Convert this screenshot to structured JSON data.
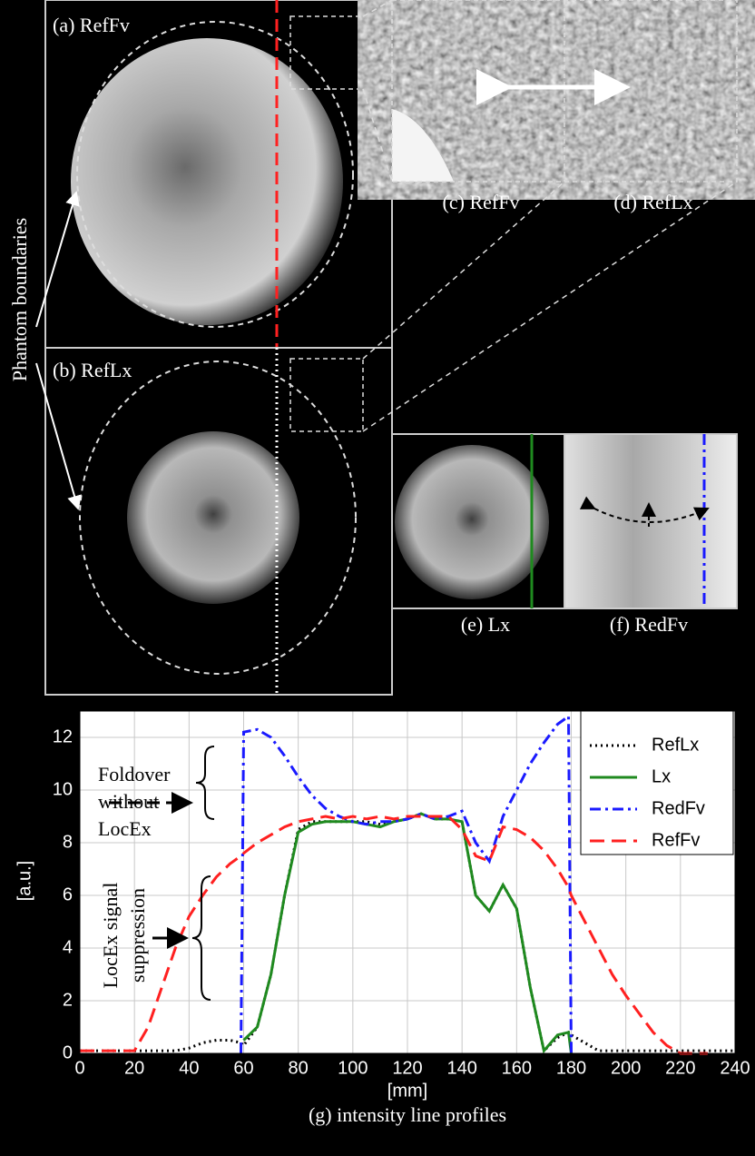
{
  "panels": {
    "a": "(a) RefFv",
    "b": "(b) RefLx",
    "c": "(c) RefFv",
    "d": "(d) RefLx",
    "e": "(e) Lx",
    "f": "(f) RedFv",
    "side_label": "Phantom boundaries"
  },
  "chart_data": {
    "type": "line",
    "title": "(g) intensity line profiles",
    "xlabel": "[mm]",
    "ylabel": "[a.u.]",
    "foldover_note": [
      "Foldover",
      "without",
      "LocEx"
    ],
    "suppression_note": [
      "LocEx signal",
      "suppression"
    ],
    "x": [
      0,
      5,
      10,
      15,
      20,
      25,
      30,
      35,
      40,
      45,
      50,
      55,
      59,
      60,
      65,
      70,
      75,
      80,
      85,
      90,
      95,
      100,
      105,
      110,
      115,
      120,
      125,
      130,
      135,
      140,
      145,
      150,
      155,
      160,
      165,
      170,
      175,
      179,
      180,
      185,
      190,
      195,
      200,
      205,
      210,
      215,
      220,
      225,
      230,
      235,
      240
    ],
    "xlim": [
      0,
      240
    ],
    "xticks": [
      0,
      20,
      40,
      60,
      80,
      100,
      120,
      140,
      160,
      180,
      200,
      220,
      240
    ],
    "ylim": [
      0,
      13
    ],
    "yticks": [
      0,
      2,
      4,
      6,
      8,
      10,
      12
    ],
    "grid": true,
    "legend": "upper right",
    "series": [
      {
        "name": "RefLx",
        "color": "#000000",
        "style": "dotted",
        "values": [
          0.1,
          0.1,
          0.1,
          0.1,
          0.1,
          0.1,
          0.1,
          0.1,
          0.2,
          0.4,
          0.5,
          0.5,
          0.4,
          0.3,
          1,
          3,
          6,
          8.5,
          8.8,
          8.8,
          8.8,
          8.8,
          8.8,
          8.7,
          8.8,
          8.9,
          9.1,
          8.9,
          8.9,
          8.8,
          6.0,
          5.4,
          6.4,
          5.5,
          2.5,
          0.1,
          0.6,
          0.8,
          0.7,
          0.4,
          0.1,
          0.1,
          0.1,
          0.1,
          0.1,
          0.1,
          0.1,
          0.1,
          0.1,
          0.1,
          0.1
        ]
      },
      {
        "name": "Lx",
        "color": "#1f8a1f",
        "style": "solid",
        "values": [
          null,
          null,
          null,
          null,
          null,
          null,
          null,
          null,
          null,
          null,
          null,
          null,
          null,
          0.5,
          1,
          3,
          6,
          8.4,
          8.7,
          8.8,
          8.8,
          8.8,
          8.7,
          8.6,
          8.8,
          8.9,
          9.1,
          8.9,
          8.9,
          8.8,
          6.0,
          5.4,
          6.4,
          5.5,
          2.5,
          0.1,
          0.7,
          0.8,
          0,
          null,
          null,
          null,
          null,
          null,
          null,
          null,
          null,
          null,
          null,
          null,
          null
        ]
      },
      {
        "name": "RedFv",
        "color": "#1a1aff",
        "style": "dashdot",
        "values": [
          null,
          null,
          null,
          null,
          null,
          null,
          null,
          null,
          null,
          null,
          null,
          null,
          0,
          12.2,
          12.3,
          12,
          11.3,
          10.5,
          9.8,
          9.3,
          9,
          8.8,
          8.7,
          8.8,
          8.8,
          8.9,
          9.1,
          8.9,
          9,
          9.2,
          8,
          7.3,
          9,
          10,
          11,
          11.8,
          12.5,
          12.8,
          0,
          null,
          null,
          null,
          null,
          null,
          null,
          null,
          null,
          null,
          null,
          null,
          null
        ]
      },
      {
        "name": "RefFv",
        "color": "#ff2020",
        "style": "dashed",
        "values": [
          0.1,
          0.1,
          0.1,
          0.1,
          0.1,
          1,
          2.5,
          4,
          5.2,
          6,
          6.7,
          7.2,
          7.5,
          7.6,
          8,
          8.3,
          8.6,
          8.8,
          8.9,
          9,
          8.9,
          9,
          8.9,
          9,
          8.9,
          9,
          9,
          9,
          9,
          8.5,
          7.5,
          7.3,
          8.6,
          8.5,
          8.2,
          7.7,
          7,
          6.3,
          6,
          5,
          4,
          3,
          2.2,
          1.5,
          0.8,
          0.3,
          0,
          0,
          0,
          null,
          null
        ]
      }
    ]
  }
}
